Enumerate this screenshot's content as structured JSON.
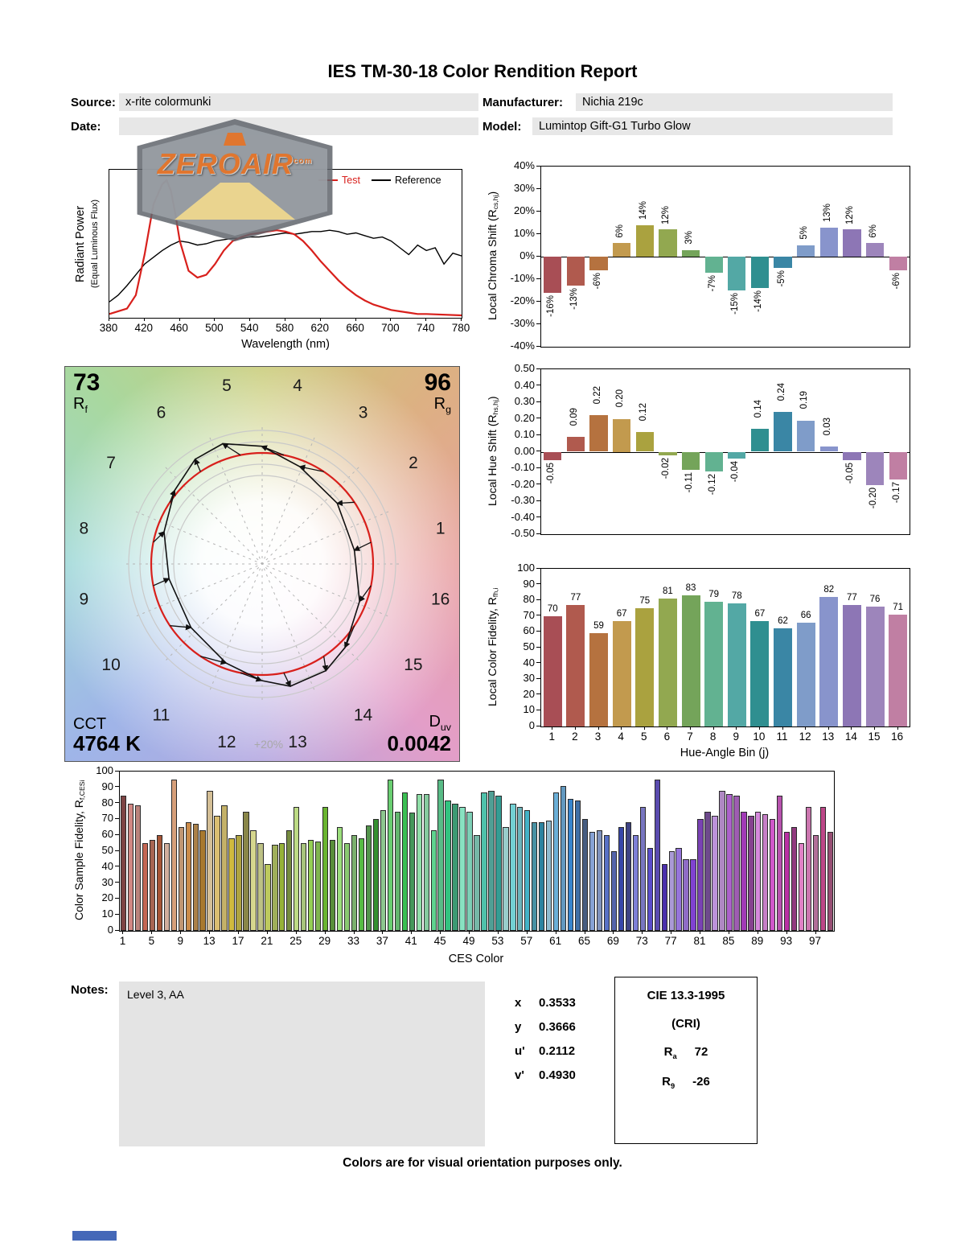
{
  "title": "IES TM-30-18 Color Rendition Report",
  "header": {
    "source_label": "Source:",
    "source_value": "x-rite colormunki",
    "manufacturer_label": "Manufacturer:",
    "manufacturer_value": "Nichia 219c",
    "date_label": "Date:",
    "date_value": "",
    "model_label": "Model:",
    "model_value": "Lumintop Gift-G1 Turbo Glow"
  },
  "logo": {
    "text": "ZEROAIR",
    "suffix": "com"
  },
  "bin_colors": [
    "#a84e55",
    "#b05a4e",
    "#b5723f",
    "#c29a4e",
    "#aaa23f",
    "#92a850",
    "#74a45a",
    "#62b291",
    "#53a8a5",
    "#2f8f90",
    "#3a86a5",
    "#7f9cc9",
    "#8894cc",
    "#8d76b5",
    "#9d85bb",
    "#c07fa3"
  ],
  "test_color": "#d8201c",
  "reference_color": "#000000",
  "cvg": {
    "rf_value": "73",
    "rf_label": "R[f]",
    "rg_value": "96",
    "rg_label": "R[g]",
    "cct_label": "CCT",
    "cct_value": "4764 K",
    "duv_label": "D[uv]",
    "duv_value": "0.0042",
    "plus_label": "+20%",
    "bins": [
      1,
      2,
      3,
      4,
      5,
      6,
      7,
      8,
      9,
      10,
      11,
      12,
      13,
      14,
      15,
      16
    ]
  },
  "chart_data": [
    {
      "id": "spd",
      "type": "line",
      "xlabel": "Wavelength (nm)",
      "ylabel_line1": "Radiant Power",
      "ylabel_line2": "(Equal Luminous Flux)",
      "xlim": [
        380,
        780
      ],
      "x_ticks": [
        380,
        420,
        460,
        500,
        540,
        580,
        620,
        660,
        700,
        740,
        780
      ],
      "legend": [
        {
          "name": "Test",
          "color": "#d8201c"
        },
        {
          "name": "Reference",
          "color": "#000000"
        }
      ],
      "series": [
        {
          "name": "Reference",
          "color": "#000000",
          "x": [
            380,
            390,
            400,
            410,
            420,
            430,
            440,
            450,
            460,
            470,
            480,
            490,
            500,
            510,
            520,
            530,
            540,
            550,
            560,
            570,
            580,
            590,
            600,
            610,
            620,
            630,
            640,
            650,
            660,
            670,
            680,
            690,
            700,
            710,
            720,
            730,
            740,
            750,
            760,
            770,
            780
          ],
          "y": [
            0.1,
            0.15,
            0.22,
            0.3,
            0.38,
            0.43,
            0.48,
            0.52,
            0.55,
            0.54,
            0.52,
            0.53,
            0.55,
            0.56,
            0.57,
            0.57,
            0.58,
            0.58,
            0.59,
            0.6,
            0.61,
            0.6,
            0.61,
            0.62,
            0.62,
            0.63,
            0.62,
            0.6,
            0.61,
            0.59,
            0.57,
            0.58,
            0.55,
            0.5,
            0.45,
            0.52,
            0.48,
            0.5,
            0.38,
            0.46,
            0.44
          ]
        },
        {
          "name": "Test",
          "color": "#d8201c",
          "x": [
            380,
            400,
            410,
            420,
            430,
            440,
            445,
            450,
            455,
            460,
            470,
            480,
            490,
            500,
            510,
            520,
            530,
            540,
            550,
            560,
            570,
            580,
            590,
            600,
            610,
            620,
            630,
            640,
            650,
            660,
            670,
            680,
            690,
            700,
            710,
            720,
            730,
            740,
            780
          ],
          "y": [
            0.01,
            0.05,
            0.15,
            0.45,
            0.82,
            0.97,
            1.0,
            0.92,
            0.75,
            0.55,
            0.33,
            0.28,
            0.3,
            0.38,
            0.48,
            0.55,
            0.58,
            0.6,
            0.61,
            0.62,
            0.63,
            0.62,
            0.6,
            0.55,
            0.48,
            0.4,
            0.33,
            0.26,
            0.2,
            0.15,
            0.11,
            0.08,
            0.06,
            0.04,
            0.03,
            0.02,
            0.01,
            0.01,
            0.0
          ]
        }
      ]
    },
    {
      "id": "chroma",
      "type": "bar",
      "ylabel": "Local Chroma Shift (R[cs,hj])",
      "categories": [
        1,
        2,
        3,
        4,
        5,
        6,
        7,
        8,
        9,
        10,
        11,
        12,
        13,
        14,
        15,
        16
      ],
      "values": [
        -16,
        -13,
        -6,
        6,
        14,
        12,
        3,
        -7,
        -15,
        -14,
        -5,
        5,
        13,
        12,
        6,
        -6
      ],
      "labels": [
        "-16%",
        "-13%",
        "-6%",
        "6%",
        "14%",
        "12%",
        "3%",
        "-7%",
        "-15%",
        "-14%",
        "-5%",
        "5%",
        "13%",
        "12%",
        "6%",
        "-6%"
      ],
      "ylim": [
        -40,
        40
      ],
      "y_tick_labels": [
        "40%",
        "30%",
        "20%",
        "10%",
        "0%",
        "-10%",
        "-20%",
        "-30%",
        "-40%"
      ],
      "y_tick_values": [
        40,
        30,
        20,
        10,
        0,
        -10,
        -20,
        -30,
        -40
      ]
    },
    {
      "id": "hue",
      "type": "bar",
      "ylabel": "Local Hue Shift (R[hs,hj])",
      "categories": [
        1,
        2,
        3,
        4,
        5,
        6,
        7,
        8,
        9,
        10,
        11,
        12,
        13,
        14,
        15,
        16
      ],
      "values": [
        -0.05,
        0.09,
        0.22,
        0.2,
        0.12,
        -0.02,
        -0.11,
        -0.12,
        -0.04,
        0.14,
        0.24,
        0.19,
        0.03,
        -0.05,
        -0.2,
        -0.17
      ],
      "labels": [
        "-0.05",
        "0.09",
        "0.22",
        "0.20",
        "0.12",
        "-0.02",
        "-0.11",
        "-0.12",
        "-0.04",
        "0.14",
        "0.24",
        "0.19",
        "0.03",
        "-0.05",
        "-0.20",
        "-0.17"
      ],
      "ylim": [
        -0.5,
        0.5
      ],
      "y_tick_labels": [
        "0.50",
        "0.40",
        "0.30",
        "0.20",
        "0.10",
        "0.00",
        "-0.10",
        "-0.20",
        "-0.30",
        "-0.40",
        "-0.50"
      ],
      "y_tick_values": [
        0.5,
        0.4,
        0.3,
        0.2,
        0.1,
        0,
        -0.1,
        -0.2,
        -0.3,
        -0.4,
        -0.5
      ]
    },
    {
      "id": "fidelity",
      "type": "bar",
      "ylabel": "Local Color Fidelity, R[fh,i]",
      "xlabel": "Hue-Angle Bin (j)",
      "categories": [
        1,
        2,
        3,
        4,
        5,
        6,
        7,
        8,
        9,
        10,
        11,
        12,
        13,
        14,
        15,
        16
      ],
      "values": [
        70,
        77,
        59,
        67,
        75,
        81,
        83,
        79,
        78,
        67,
        62,
        66,
        82,
        77,
        76,
        71
      ],
      "labels": [
        "70",
        "77",
        "59",
        "67",
        "75",
        "81",
        "83",
        "79",
        "78",
        "67",
        "62",
        "66",
        "82",
        "77",
        "76",
        "71"
      ],
      "ylim": [
        0,
        100
      ],
      "y_tick_labels": [
        "100",
        "90",
        "80",
        "70",
        "60",
        "50",
        "40",
        "30",
        "20",
        "10",
        "0"
      ],
      "y_tick_values": [
        100,
        90,
        80,
        70,
        60,
        50,
        40,
        30,
        20,
        10,
        0
      ]
    },
    {
      "id": "ces",
      "type": "bar",
      "ylabel": "Color Sample Fidelity, R[f,CESi]",
      "xlabel": "CES Color",
      "x_ticks": [
        1,
        5,
        9,
        13,
        17,
        21,
        25,
        29,
        33,
        37,
        41,
        45,
        49,
        53,
        57,
        61,
        65,
        69,
        73,
        77,
        81,
        85,
        89,
        93,
        97
      ],
      "values": [
        85,
        80,
        79,
        55,
        57,
        60,
        55,
        95,
        65,
        68,
        67,
        63,
        88,
        72,
        79,
        58,
        60,
        75,
        63,
        55,
        42,
        54,
        55,
        63,
        78,
        55,
        57,
        56,
        78,
        57,
        65,
        55,
        60,
        58,
        66,
        70,
        76,
        95,
        75,
        87,
        74,
        86,
        86,
        63,
        95,
        82,
        80,
        78,
        75,
        60,
        87,
        88,
        85,
        65,
        80,
        78,
        76,
        68,
        68,
        69,
        87,
        91,
        83,
        82,
        70,
        62,
        63,
        60,
        50,
        65,
        68,
        60,
        78,
        52,
        95,
        42,
        50,
        52,
        45,
        45,
        70,
        75,
        72,
        88,
        86,
        85,
        75,
        72,
        75,
        73,
        70,
        85,
        62,
        65,
        55,
        78,
        60,
        78,
        62
      ],
      "ylim": [
        0,
        100
      ],
      "y_tick_labels": [
        "100",
        "90",
        "80",
        "70",
        "60",
        "50",
        "40",
        "30",
        "20",
        "10",
        "0"
      ],
      "y_tick_values": [
        100,
        90,
        80,
        70,
        60,
        50,
        40,
        30,
        20,
        10,
        0
      ]
    }
  ],
  "notes": {
    "label": "Notes:",
    "value": "Level 3, AA"
  },
  "chromaticity": {
    "rows": [
      {
        "label": "x",
        "value": "0.3533"
      },
      {
        "label": "y",
        "value": "0.3666"
      },
      {
        "label": "u'",
        "value": "0.2112"
      },
      {
        "label": "v'",
        "value": "0.4930"
      }
    ]
  },
  "cri_box": {
    "title": "CIE 13.3-1995",
    "subtitle": "(CRI)",
    "ra_label": "R[a]",
    "ra_value": "72",
    "r9_label": "R[9]",
    "r9_value": "-26"
  },
  "footer": "Colors are for visual orientation purposes only."
}
